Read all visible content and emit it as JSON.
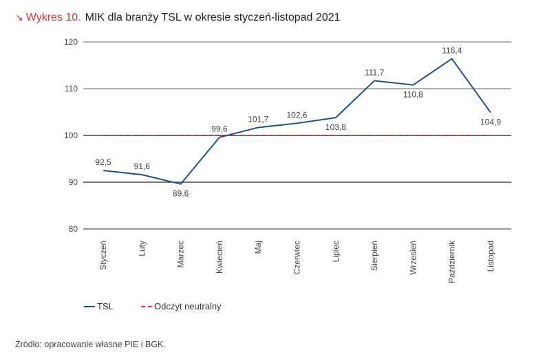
{
  "header": {
    "arrow_icon": "arrow-down-right-icon",
    "number": "Wykres 10.",
    "title": "MIK dla branży TSL w okresie styczeń-listopad 2021"
  },
  "chart_data": {
    "type": "line",
    "title": "MIK dla branży TSL w okresie styczeń-listopad 2021",
    "xlabel": "",
    "ylabel": "",
    "categories": [
      "Styczeń",
      "Luty",
      "Marzec",
      "Kwiecień",
      "Maj",
      "Czerwiec",
      "Lipiec",
      "Sierpień",
      "Wrzesień",
      "Październik",
      "Listopad"
    ],
    "series": [
      {
        "name": "TSL",
        "color": "#1f4e99",
        "style": "solid",
        "values": [
          92.5,
          91.6,
          89.6,
          99.6,
          101.7,
          102.6,
          103.8,
          111.7,
          110.8,
          116.4,
          104.9
        ],
        "labels": [
          "92,5",
          "91,6",
          "89,6",
          "99,6",
          "101,7",
          "102,6",
          "103,8",
          "111,7",
          "110,8",
          "116,4",
          "104,9"
        ],
        "label_pos": [
          "above",
          "above",
          "below",
          "above",
          "above",
          "above",
          "below",
          "above",
          "below",
          "above",
          "below"
        ]
      },
      {
        "name": "Odczyt neutralny",
        "color": "#e0303a",
        "style": "dashed",
        "values": [
          100,
          100,
          100,
          100,
          100,
          100,
          100,
          100,
          100,
          100,
          100
        ]
      }
    ],
    "ylim": [
      80,
      120
    ],
    "yticks": [
      80,
      90,
      100,
      110,
      120
    ],
    "ytick_labels": [
      "80",
      "90",
      "100",
      "110",
      "120"
    ],
    "grid": true,
    "legend_position": "bottom-left"
  },
  "legend": {
    "items": [
      {
        "label": "TSL",
        "color": "#1f4e99",
        "style": "solid"
      },
      {
        "label": "Odczyt neutralny",
        "color": "#e0303a",
        "style": "dashed"
      }
    ]
  },
  "footer": {
    "source": "Źródło: opracowanie własne PIE i BGK."
  }
}
